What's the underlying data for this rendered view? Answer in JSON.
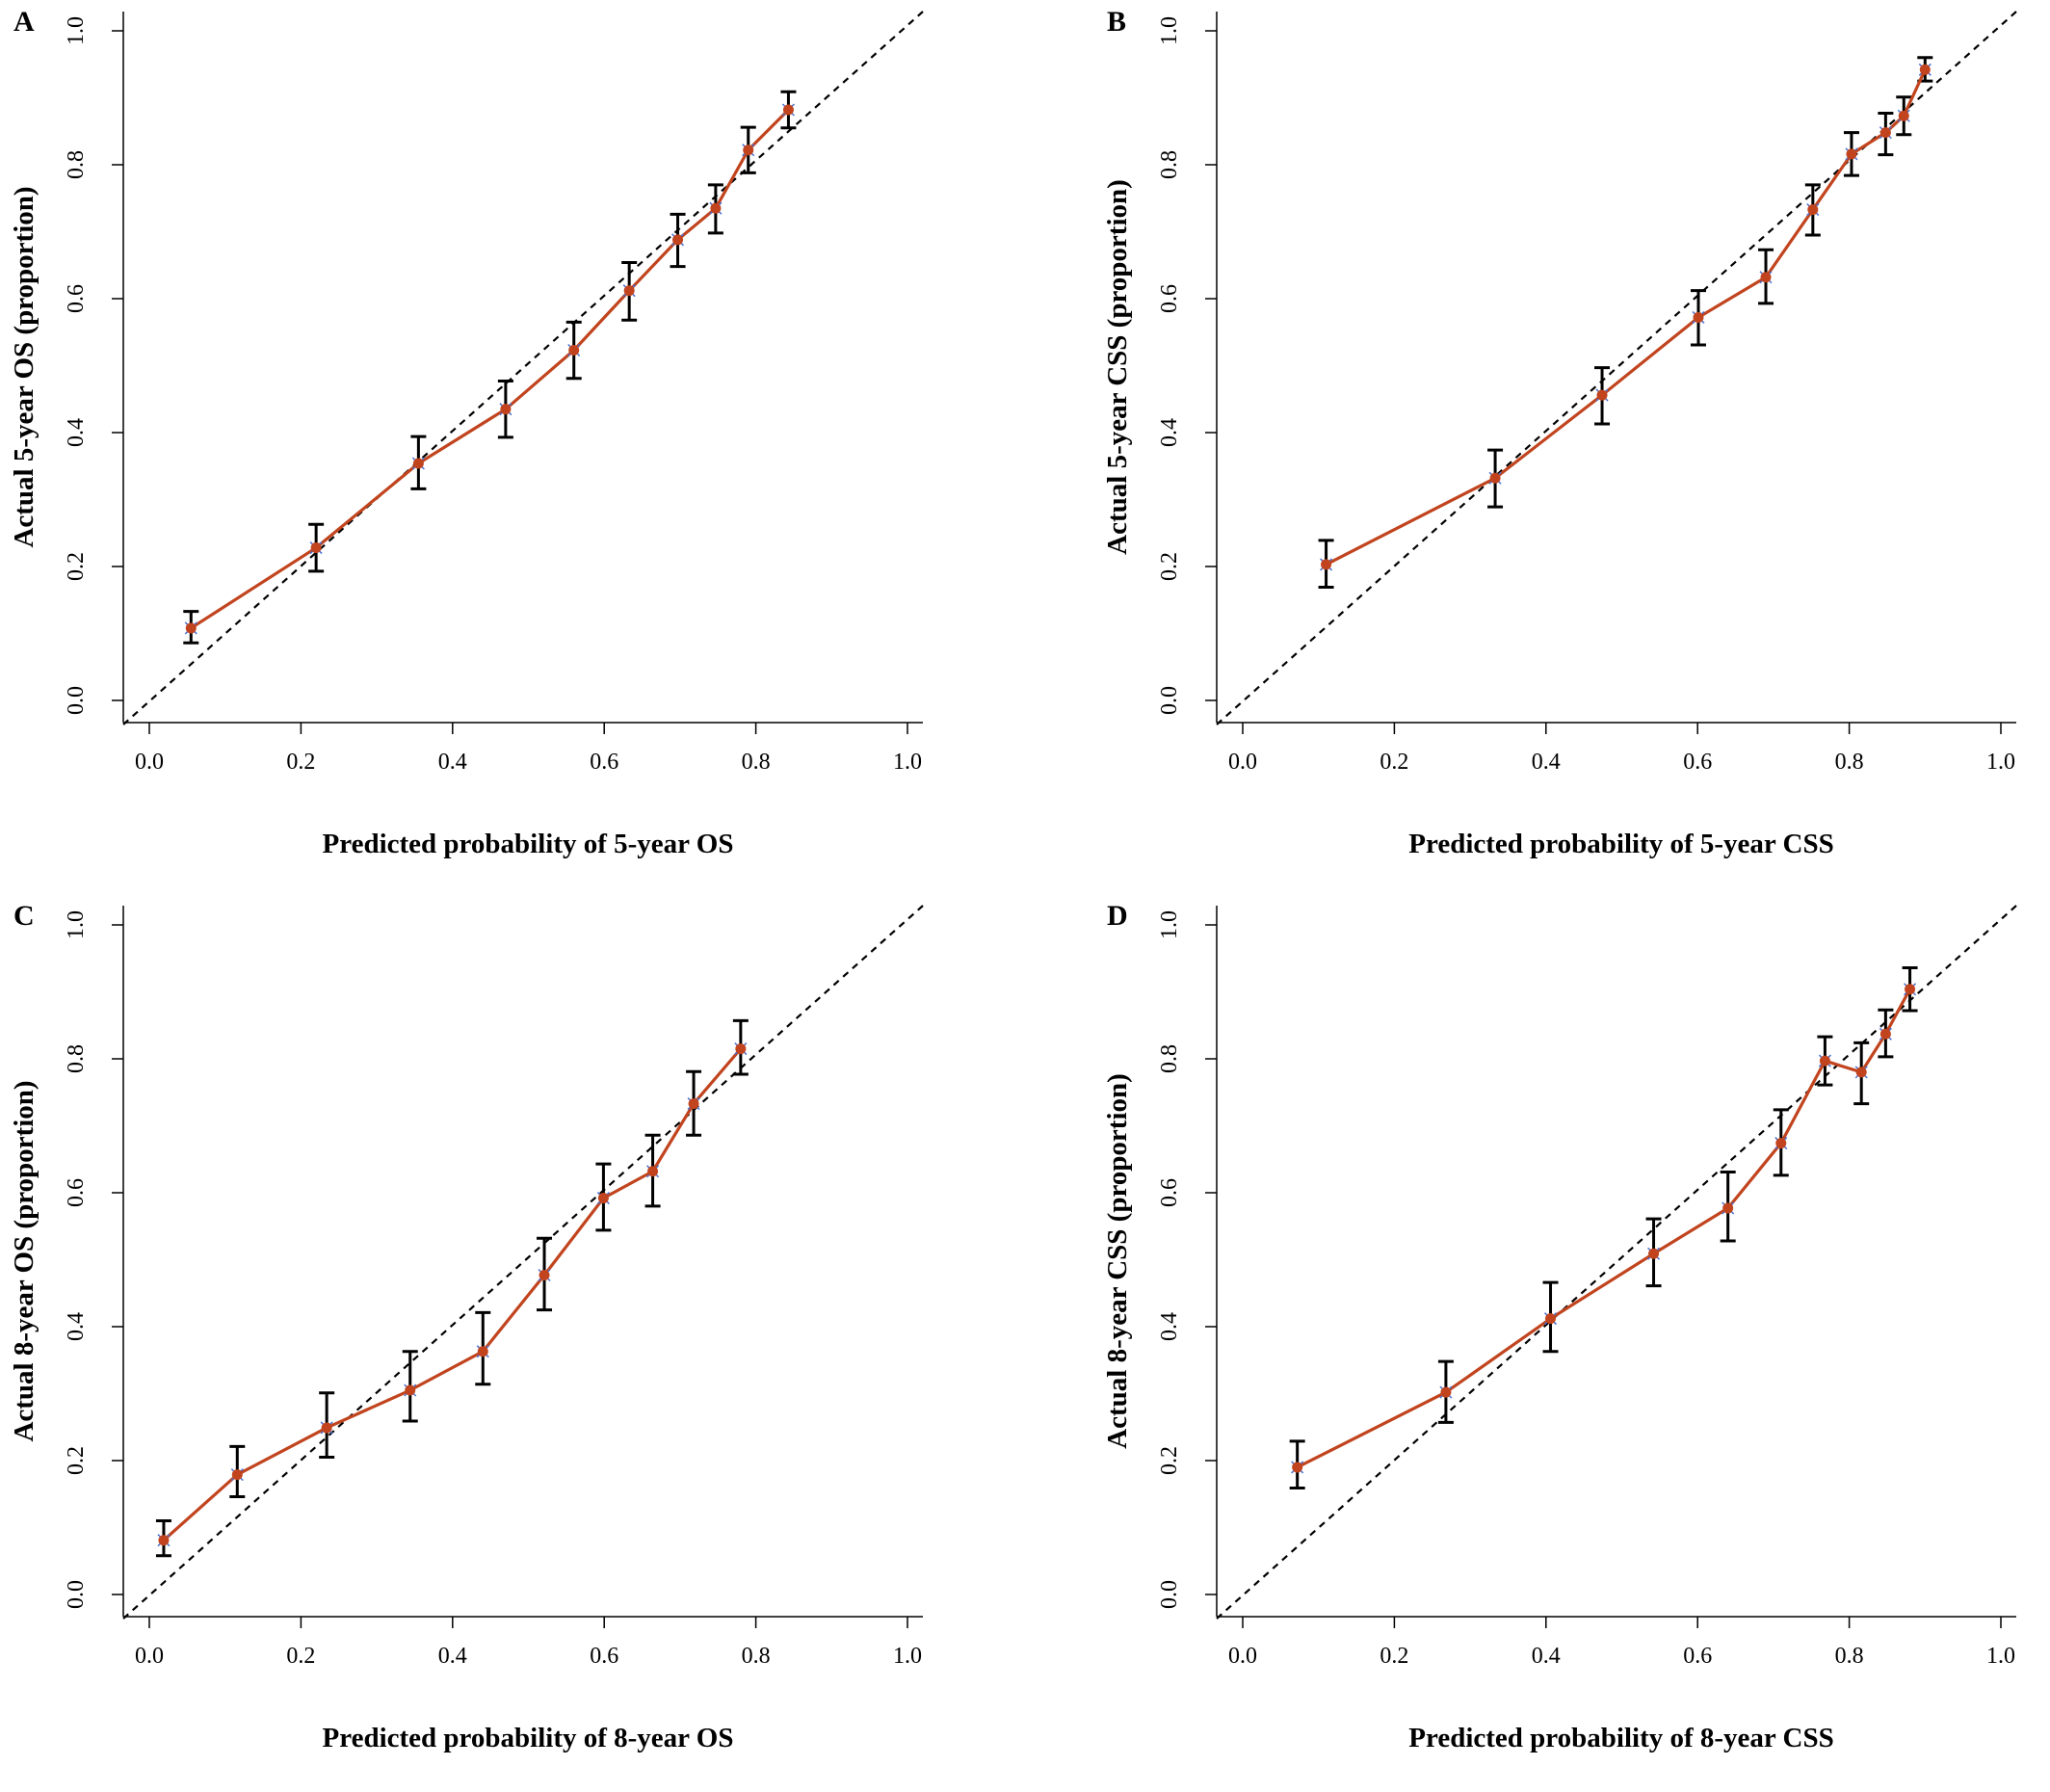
{
  "colors": {
    "calibration_line": "#c1441e",
    "error_bar": "#000000",
    "reference_line": "#000000",
    "cross": "#4a6fd0"
  },
  "chart_data": [
    {
      "type": "line",
      "panel_label": "A",
      "xlabel": "Predicted probability of 5-year OS",
      "ylabel": "Actual 5-year OS (proportion)",
      "xlim": [
        0.0,
        1.0
      ],
      "ylim": [
        0.0,
        1.0
      ],
      "xticks": [
        "0.0",
        "0.2",
        "0.4",
        "0.6",
        "0.8",
        "1.0"
      ],
      "yticks": [
        "0.0",
        "0.2",
        "0.4",
        "0.6",
        "0.8",
        "1.0"
      ],
      "reference_line": "diagonal (ideal)",
      "series": [
        {
          "x": [
            0.055,
            0.22,
            0.355,
            0.47,
            0.56,
            0.633,
            0.697,
            0.747,
            0.79,
            0.843
          ],
          "y": [
            0.108,
            0.228,
            0.354,
            0.435,
            0.523,
            0.612,
            0.688,
            0.735,
            0.822,
            0.882
          ],
          "lower": [
            0.086,
            0.193,
            0.316,
            0.393,
            0.481,
            0.568,
            0.648,
            0.698,
            0.788,
            0.855
          ],
          "upper": [
            0.133,
            0.263,
            0.394,
            0.477,
            0.565,
            0.654,
            0.726,
            0.77,
            0.856,
            0.909
          ]
        }
      ]
    },
    {
      "type": "line",
      "panel_label": "B",
      "xlabel": "Predicted probability of 5-year CSS",
      "ylabel": "Actual 5-year CSS (proportion)",
      "xlim": [
        0.0,
        1.0
      ],
      "ylim": [
        0.0,
        1.0
      ],
      "xticks": [
        "0.0",
        "0.2",
        "0.4",
        "0.6",
        "0.8",
        "1.0"
      ],
      "yticks": [
        "0.0",
        "0.2",
        "0.4",
        "0.6",
        "0.8",
        "1.0"
      ],
      "reference_line": "diagonal (ideal)",
      "series": [
        {
          "x": [
            0.11,
            0.333,
            0.474,
            0.601,
            0.69,
            0.752,
            0.803,
            0.848,
            0.872,
            0.9
          ],
          "y": [
            0.203,
            0.332,
            0.456,
            0.572,
            0.632,
            0.733,
            0.816,
            0.848,
            0.873,
            0.942
          ],
          "lower": [
            0.169,
            0.289,
            0.413,
            0.531,
            0.593,
            0.695,
            0.784,
            0.815,
            0.845,
            0.925
          ],
          "upper": [
            0.239,
            0.374,
            0.497,
            0.612,
            0.673,
            0.77,
            0.848,
            0.877,
            0.901,
            0.96
          ]
        }
      ]
    },
    {
      "type": "line",
      "panel_label": "C",
      "xlabel": "Predicted probability of 8-year OS",
      "ylabel": "Actual 8-year OS (proportion)",
      "xlim": [
        0.0,
        1.0
      ],
      "ylim": [
        0.0,
        1.0
      ],
      "xticks": [
        "0.0",
        "0.2",
        "0.4",
        "0.6",
        "0.8",
        "1.0"
      ],
      "yticks": [
        "0.0",
        "0.2",
        "0.4",
        "0.6",
        "0.8",
        "1.0"
      ],
      "reference_line": "diagonal (ideal)",
      "series": [
        {
          "x": [
            0.019,
            0.116,
            0.234,
            0.344,
            0.44,
            0.521,
            0.599,
            0.664,
            0.718,
            0.78
          ],
          "y": [
            0.081,
            0.179,
            0.249,
            0.305,
            0.363,
            0.477,
            0.592,
            0.632,
            0.733,
            0.815
          ],
          "lower": [
            0.058,
            0.146,
            0.205,
            0.259,
            0.314,
            0.425,
            0.544,
            0.58,
            0.686,
            0.777
          ],
          "upper": [
            0.11,
            0.221,
            0.301,
            0.363,
            0.421,
            0.532,
            0.643,
            0.686,
            0.781,
            0.857
          ]
        }
      ]
    },
    {
      "type": "line",
      "panel_label": "D",
      "xlabel": "Predicted probability of 8-year CSS",
      "ylabel": "Actual 8-year CSS (proportion)",
      "xlim": [
        0.0,
        1.0
      ],
      "ylim": [
        0.0,
        1.0
      ],
      "xticks": [
        "0.0",
        "0.2",
        "0.4",
        "0.6",
        "0.8",
        "1.0"
      ],
      "yticks": [
        "0.0",
        "0.2",
        "0.4",
        "0.6",
        "0.8",
        "1.0"
      ],
      "reference_line": "diagonal (ideal)",
      "series": [
        {
          "x": [
            0.072,
            0.268,
            0.406,
            0.542,
            0.64,
            0.71,
            0.768,
            0.816,
            0.848,
            0.88
          ],
          "y": [
            0.19,
            0.302,
            0.412,
            0.509,
            0.577,
            0.674,
            0.797,
            0.78,
            0.837,
            0.904
          ],
          "lower": [
            0.159,
            0.257,
            0.363,
            0.461,
            0.528,
            0.626,
            0.761,
            0.733,
            0.803,
            0.872
          ],
          "upper": [
            0.229,
            0.348,
            0.466,
            0.561,
            0.631,
            0.724,
            0.833,
            0.824,
            0.873,
            0.936
          ]
        }
      ]
    }
  ]
}
